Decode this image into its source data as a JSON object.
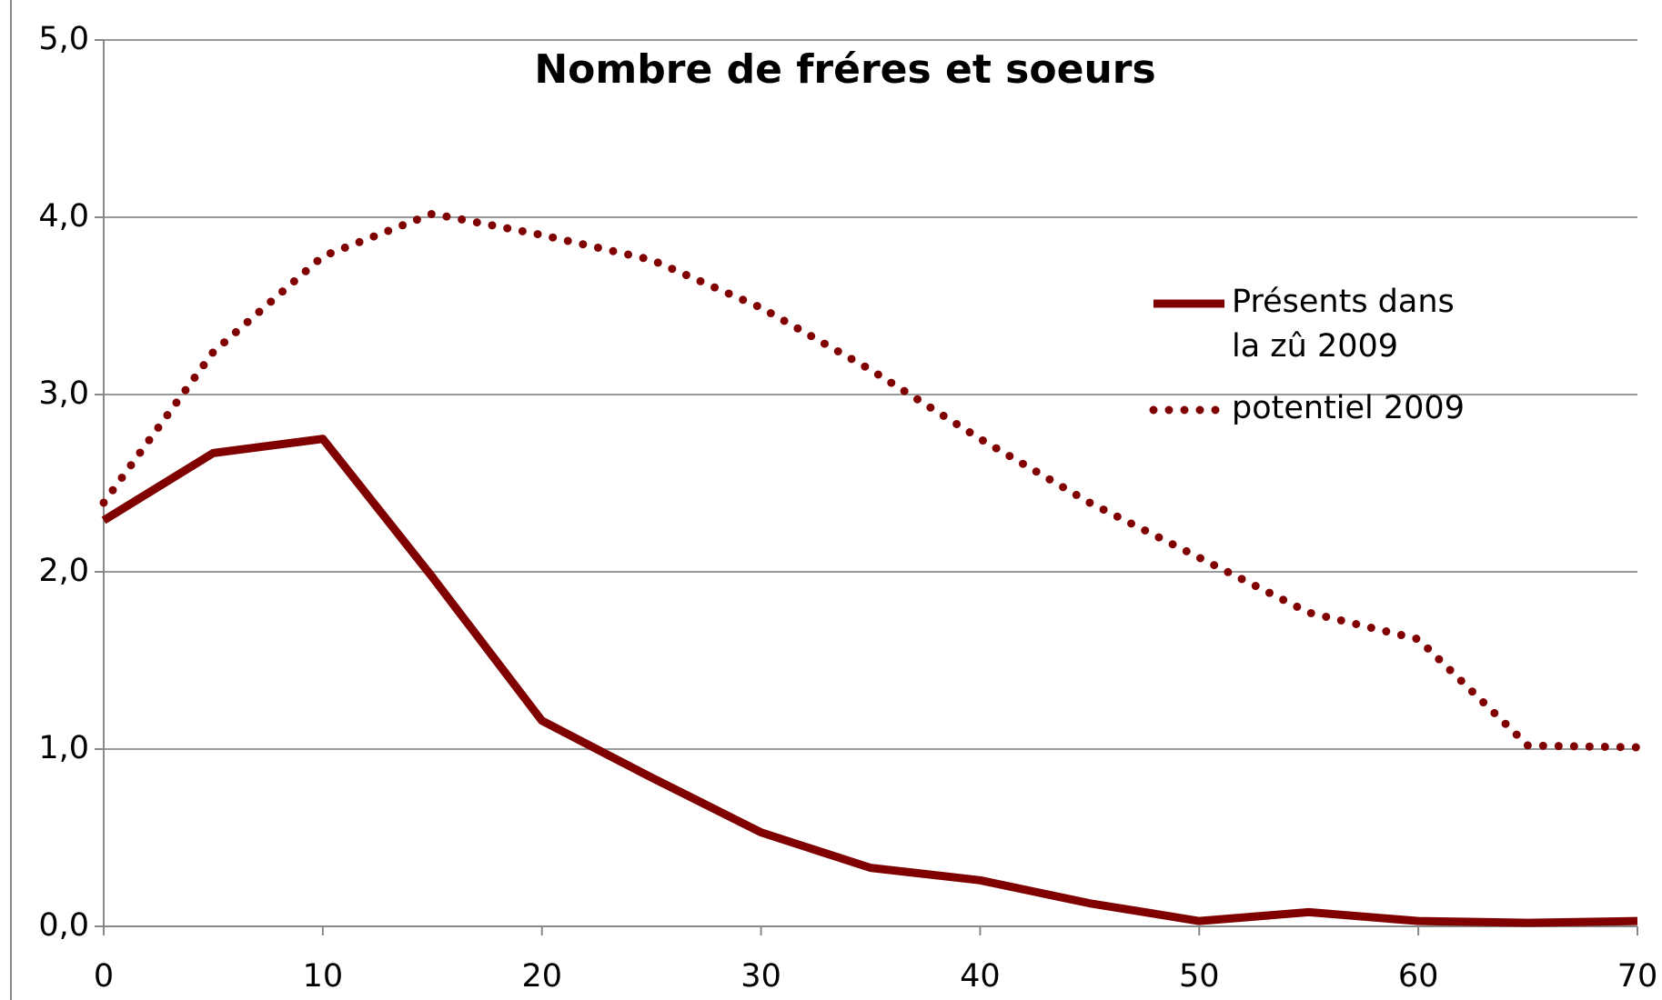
{
  "chart_data": {
    "type": "line",
    "title": "Nombre de fréres et soeurs",
    "x": [
      0,
      5,
      10,
      15,
      20,
      25,
      30,
      35,
      40,
      45,
      50,
      55,
      60,
      65,
      70
    ],
    "series": [
      {
        "name": "Présents dans la zû 2009",
        "color": "#800000",
        "style": "solid",
        "values": [
          2.29,
          2.67,
          2.75,
          1.97,
          1.16,
          0.84,
          0.53,
          0.33,
          0.26,
          0.13,
          0.03,
          0.08,
          0.03,
          0.02,
          0.03
        ]
      },
      {
        "name": "potentiel 2009",
        "color": "#800000",
        "style": "dotted",
        "values": [
          2.39,
          3.24,
          3.78,
          4.02,
          3.9,
          3.76,
          3.49,
          3.14,
          2.75,
          2.39,
          2.08,
          1.77,
          1.62,
          1.02,
          1.01
        ]
      }
    ],
    "xlim": [
      0,
      70
    ],
    "xticks": [
      0,
      10,
      20,
      30,
      40,
      50,
      60,
      70
    ],
    "ylim": [
      0,
      5
    ],
    "yticks": [
      {
        "value": 0,
        "label": "0,0"
      },
      {
        "value": 1,
        "label": "1,0"
      },
      {
        "value": 2,
        "label": "2,0"
      },
      {
        "value": 3,
        "label": "3,0"
      },
      {
        "value": 4,
        "label": "4,0"
      },
      {
        "value": 5,
        "label": "5,0"
      }
    ],
    "grid": true
  }
}
